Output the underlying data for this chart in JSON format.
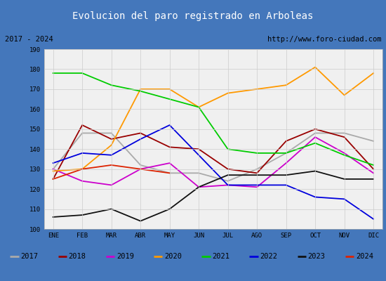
{
  "title": "Evolucion del paro registrado en Arboleas",
  "title_color": "#ffffff",
  "title_bg": "#5b8dc8",
  "subtitle_left": "2017 - 2024",
  "subtitle_right": "http://www.foro-ciudad.com",
  "months": [
    "ENE",
    "FEB",
    "MAR",
    "ABR",
    "MAY",
    "JUN",
    "JUL",
    "AGO",
    "SEP",
    "OCT",
    "NOV",
    "DIC"
  ],
  "ylim": [
    100,
    190
  ],
  "yticks": [
    100,
    110,
    120,
    130,
    140,
    150,
    160,
    170,
    180,
    190
  ],
  "series": [
    {
      "year": "2017",
      "color": "#aaaaaa",
      "data": [
        130,
        148,
        148,
        132,
        128,
        128,
        124,
        130,
        138,
        148,
        148,
        144
      ]
    },
    {
      "year": "2018",
      "color": "#990000",
      "data": [
        125,
        152,
        145,
        148,
        141,
        140,
        130,
        128,
        144,
        150,
        146,
        130
      ]
    },
    {
      "year": "2019",
      "color": "#cc00cc",
      "data": [
        130,
        124,
        122,
        130,
        133,
        121,
        122,
        121,
        133,
        146,
        138,
        128
      ]
    },
    {
      "year": "2020",
      "color": "#ff9900",
      "data": [
        129,
        130,
        142,
        170,
        170,
        161,
        168,
        170,
        172,
        181,
        167,
        178
      ]
    },
    {
      "year": "2021",
      "color": "#00cc00",
      "data": [
        178,
        178,
        172,
        169,
        165,
        161,
        140,
        138,
        138,
        143,
        137,
        132
      ]
    },
    {
      "year": "2022",
      "color": "#0000dd",
      "data": [
        133,
        138,
        137,
        145,
        152,
        137,
        122,
        122,
        122,
        116,
        115,
        105
      ]
    },
    {
      "year": "2023",
      "color": "#111111",
      "data": [
        106,
        107,
        110,
        104,
        110,
        121,
        127,
        127,
        127,
        129,
        125,
        125
      ]
    },
    {
      "year": "2024",
      "color": "#dd2200",
      "data": [
        125,
        130,
        132,
        130,
        128,
        null,
        null,
        null,
        null,
        null,
        null,
        null
      ]
    }
  ],
  "bg_color": "#e8e8e8",
  "plot_bg": "#f0f0f0",
  "grid_color": "#cccccc",
  "outer_border_color": "#4477bb"
}
